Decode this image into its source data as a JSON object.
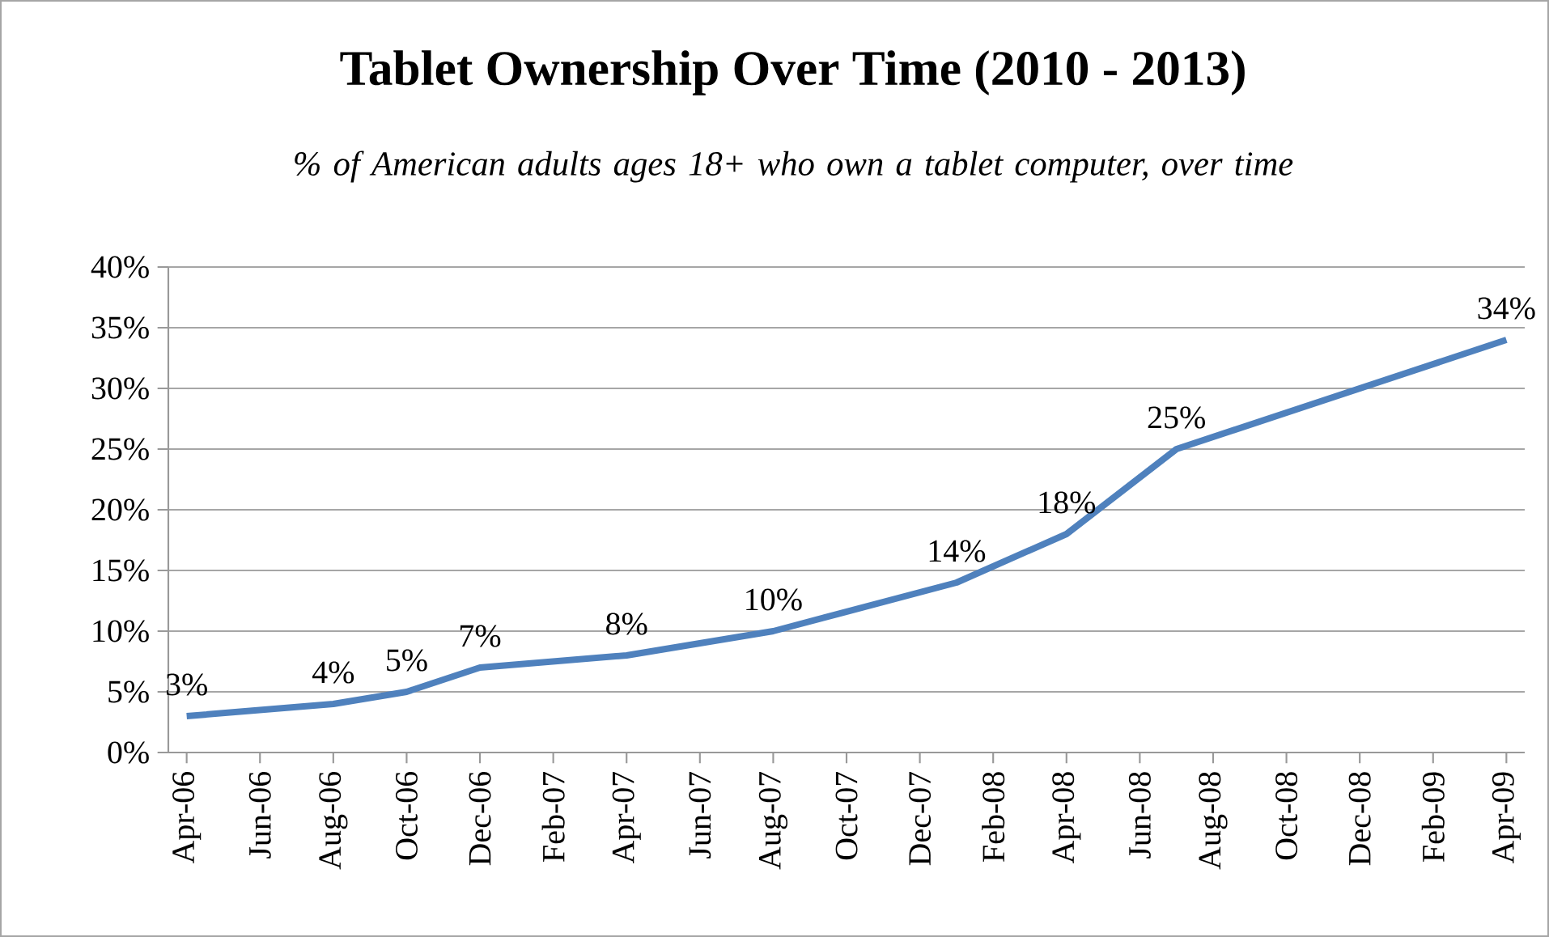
{
  "chart_data": {
    "type": "line",
    "title": "Tablet Ownership Over Time (2010 - 2013)",
    "subtitle": "% of American adults ages 18+ who own a tablet computer, over time",
    "x": [
      "2006-04",
      "2006-08",
      "2006-10",
      "2006-12",
      "2007-04",
      "2007-08",
      "2008-01",
      "2008-04",
      "2008-07",
      "2009-04"
    ],
    "series": [
      {
        "color": "#4f81bd",
        "values": [
          3,
          4,
          5,
          7,
          8,
          10,
          14,
          18,
          25,
          34
        ],
        "value_labels": [
          "3%",
          "4%",
          "5%",
          "7%",
          "8%",
          "10%",
          "14%",
          "18%",
          "25%",
          "34%"
        ]
      }
    ],
    "xlim": [
      "2006-03-16",
      "2009-04-16"
    ],
    "xticks": [
      {
        "value": "2006-04",
        "label": "Apr-06"
      },
      {
        "value": "2006-06",
        "label": "Jun-06"
      },
      {
        "value": "2006-08",
        "label": "Aug-06"
      },
      {
        "value": "2006-10",
        "label": "Oct-06"
      },
      {
        "value": "2006-12",
        "label": "Dec-06"
      },
      {
        "value": "2007-02",
        "label": "Feb-07"
      },
      {
        "value": "2007-04",
        "label": "Apr-07"
      },
      {
        "value": "2007-06",
        "label": "Jun-07"
      },
      {
        "value": "2007-08",
        "label": "Aug-07"
      },
      {
        "value": "2007-10",
        "label": "Oct-07"
      },
      {
        "value": "2007-12",
        "label": "Dec-07"
      },
      {
        "value": "2008-02",
        "label": "Feb-08"
      },
      {
        "value": "2008-04",
        "label": "Apr-08"
      },
      {
        "value": "2008-06",
        "label": "Jun-08"
      },
      {
        "value": "2008-08",
        "label": "Aug-08"
      },
      {
        "value": "2008-10",
        "label": "Oct-08"
      },
      {
        "value": "2008-12",
        "label": "Dec-08"
      },
      {
        "value": "2009-02",
        "label": "Feb-09"
      },
      {
        "value": "2009-04",
        "label": "Apr-09"
      }
    ],
    "ylim": [
      0,
      40
    ],
    "yticks": [
      {
        "value": 0,
        "label": "0%"
      },
      {
        "value": 5,
        "label": "5%"
      },
      {
        "value": 10,
        "label": "10%"
      },
      {
        "value": 15,
        "label": "15%"
      },
      {
        "value": 20,
        "label": "20%"
      },
      {
        "value": 25,
        "label": "25%"
      },
      {
        "value": 30,
        "label": "30%"
      },
      {
        "value": 35,
        "label": "35%"
      },
      {
        "value": 40,
        "label": "40%"
      }
    ],
    "grid": "y"
  }
}
